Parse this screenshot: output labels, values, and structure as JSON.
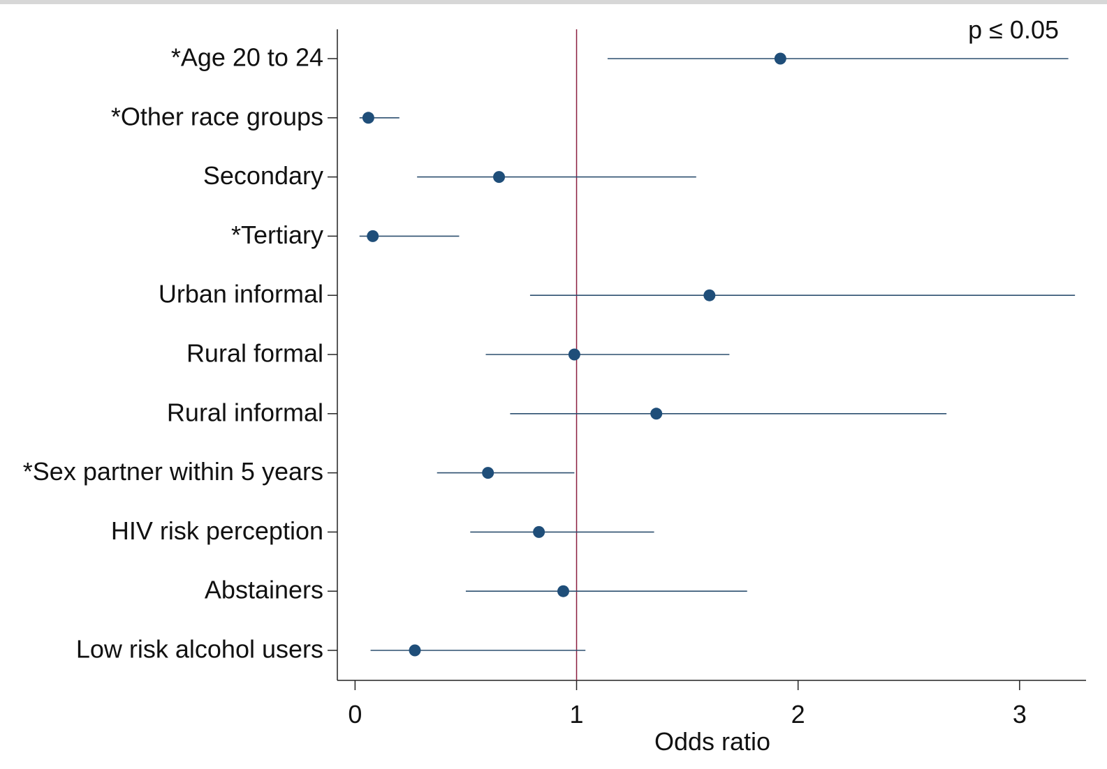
{
  "chart_data": {
    "type": "scatter",
    "subtype": "forest-plot",
    "title": "",
    "annotation": "p ≤ 0.05",
    "xlabel": "Odds ratio",
    "ylabel": "",
    "xlim": [
      -0.08,
      3.3
    ],
    "x_ticks": [
      0,
      1,
      2,
      3
    ],
    "reference_line": 1,
    "grid": false,
    "colors": {
      "point": "#1f4e79",
      "ci_line": "#2c4f6f",
      "reference_line": "#8b1e3f",
      "axis": "#222222",
      "text": "#111111"
    },
    "rows": [
      {
        "label": "*Age 20 to 24",
        "or": 1.92,
        "ci_low": 1.14,
        "ci_high": 3.22
      },
      {
        "label": "*Other race groups",
        "or": 0.06,
        "ci_low": 0.02,
        "ci_high": 0.2
      },
      {
        "label": "Secondary",
        "or": 0.65,
        "ci_low": 0.28,
        "ci_high": 1.54
      },
      {
        "label": "*Tertiary",
        "or": 0.08,
        "ci_low": 0.02,
        "ci_high": 0.47
      },
      {
        "label": "Urban informal",
        "or": 1.6,
        "ci_low": 0.79,
        "ci_high": 3.25
      },
      {
        "label": "Rural formal",
        "or": 0.99,
        "ci_low": 0.59,
        "ci_high": 1.69
      },
      {
        "label": "Rural informal",
        "or": 1.36,
        "ci_low": 0.7,
        "ci_high": 2.67
      },
      {
        "label": "*Sex partner within 5 years",
        "or": 0.6,
        "ci_low": 0.37,
        "ci_high": 0.99
      },
      {
        "label": "HIV risk perception",
        "or": 0.83,
        "ci_low": 0.52,
        "ci_high": 1.35
      },
      {
        "label": "Abstainers",
        "or": 0.94,
        "ci_low": 0.5,
        "ci_high": 1.77
      },
      {
        "label": "Low risk alcohol users",
        "or": 0.27,
        "ci_low": 0.07,
        "ci_high": 1.04
      }
    ]
  }
}
